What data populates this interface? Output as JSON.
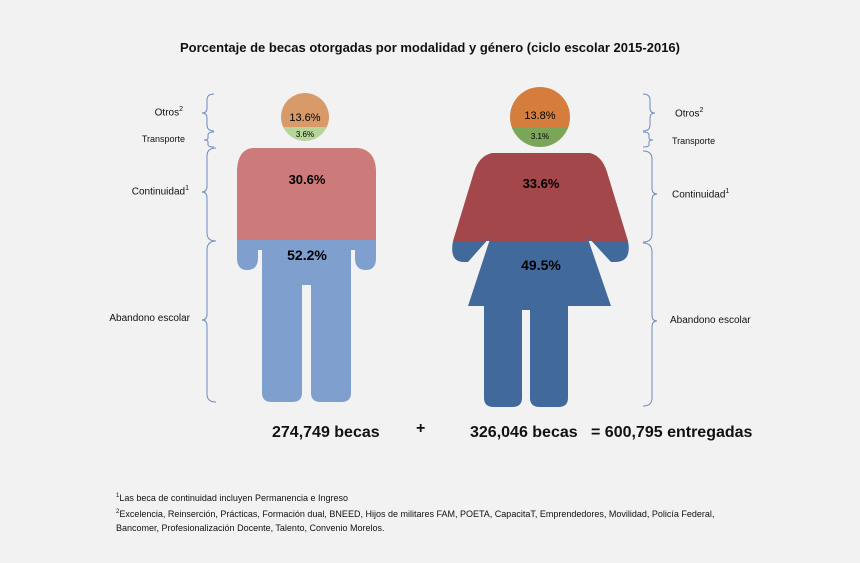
{
  "title": "Porcentaje de becas otorgadas por modalidad y género (ciclo escolar 2015-2016)",
  "chart_data": {
    "type": "pictogram",
    "title": "Porcentaje de becas otorgadas por modalidad y género (ciclo escolar 2015-2016)",
    "categories": [
      "Otros",
      "Transporte",
      "Continuidad",
      "Abandono escolar"
    ],
    "series": [
      {
        "name": "Hombres",
        "values": [
          13.6,
          3.6,
          30.6,
          52.2
        ],
        "labels": [
          "13.6%",
          "3.6%",
          "30.6%",
          "52.2%"
        ],
        "total": "274,749 becas"
      },
      {
        "name": "Mujeres",
        "values": [
          13.8,
          3.1,
          33.6,
          49.5
        ],
        "labels": [
          "13.8%",
          "3.1%",
          "33.6%",
          "49.5%"
        ],
        "total": "326,046 becas"
      }
    ],
    "colors": {
      "male": {
        "otros": "#d99a6a",
        "transporte": "#b7d49a",
        "continuidad": "#cd7a7a",
        "abandono": "#7f9fcf"
      },
      "female": {
        "otros": "#d47d3c",
        "transporte": "#7ba659",
        "continuidad": "#a3474a",
        "abandono": "#41699c"
      }
    }
  },
  "labels": {
    "otros": "Otros",
    "transporte": "Transporte",
    "continuidad": "Continuidad",
    "abandono": "Abandono escolar",
    "sup1": "1",
    "sup2": "2"
  },
  "totals": {
    "plus": "+",
    "grand": "= 600,795 entregadas"
  },
  "footnotes": [
    {
      "mark": "1",
      "text": "Las beca de continuidad incluyen Permanencia e Ingreso"
    },
    {
      "mark": "2",
      "text": "Excelencia, Reinserción, Prácticas, Formación dual, BNEED, Hijos de militares FAM, POETA, CapacitaT, Emprendedores, Movilidad, Policía Federal, Bancomer, Profesionalización Docente, Talento, Convenio Morelos."
    }
  ]
}
